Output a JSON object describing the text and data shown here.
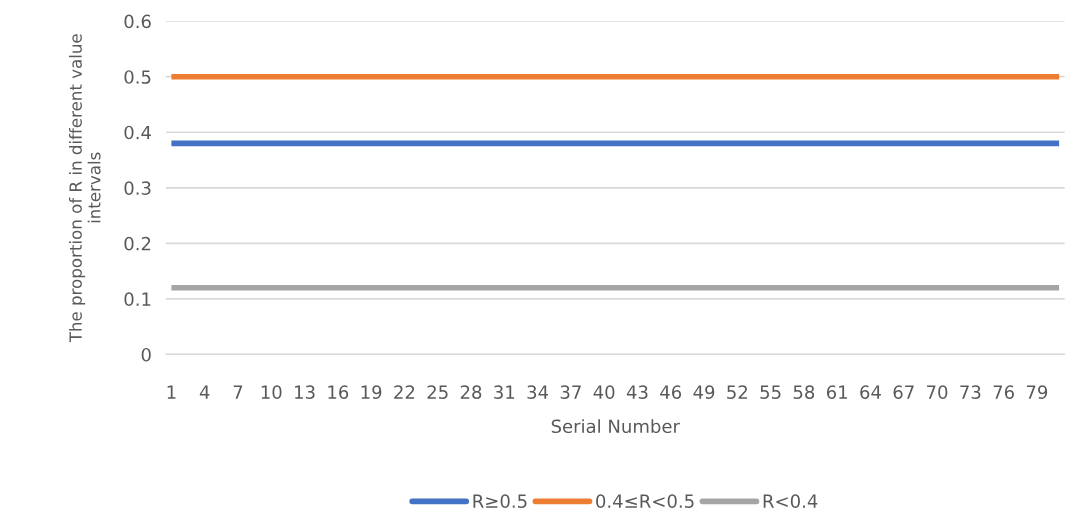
{
  "chart_data": {
    "type": "line",
    "xlabel": "Serial Number",
    "ylabel": "The proportion of R in different value intervals",
    "categories": [
      "1",
      null,
      null,
      "4",
      null,
      null,
      "7",
      null,
      null,
      "10",
      null,
      null,
      "13",
      null,
      null,
      "16",
      null,
      null,
      "19",
      null,
      null,
      "22",
      null,
      null,
      "25",
      null,
      null,
      "28",
      null,
      null,
      "31",
      null,
      null,
      "34",
      null,
      null,
      "37",
      null,
      null,
      "40",
      null,
      null,
      "43",
      null,
      null,
      "46",
      null,
      null,
      "49",
      null,
      null,
      "52",
      null,
      null,
      "55",
      null,
      null,
      "58",
      null,
      null,
      "61",
      null,
      null,
      "64",
      null,
      null,
      "67",
      null,
      null,
      "70",
      null,
      null,
      "73",
      null,
      null,
      "76",
      null,
      null,
      "79",
      null,
      null
    ],
    "series": [
      {
        "name": "R≥0.5",
        "color": "#4472c4",
        "values": [
          0.38,
          0.38,
          0.38,
          0.38,
          0.38,
          0.38,
          0.38,
          0.38,
          0.38,
          0.38,
          0.38,
          0.38,
          0.38,
          0.38,
          0.38,
          0.38,
          0.38,
          0.38,
          0.38,
          0.38,
          0.38,
          0.38,
          0.38,
          0.38,
          0.38,
          0.38,
          0.38,
          0.38,
          0.38,
          0.38,
          0.38,
          0.38,
          0.38,
          0.38,
          0.38,
          0.38,
          0.38,
          0.38,
          0.38,
          0.38,
          0.38,
          0.38,
          0.38,
          0.38,
          0.38,
          0.38,
          0.38,
          0.38,
          0.38,
          0.38,
          0.38,
          0.38,
          0.38,
          0.38,
          0.38,
          0.38,
          0.38,
          0.38,
          0.38,
          0.38,
          0.38,
          0.38,
          0.38,
          0.38,
          0.38,
          0.38,
          0.38,
          0.38,
          0.38,
          0.38,
          0.38,
          0.38,
          0.38,
          0.38,
          0.38,
          0.38,
          0.38,
          0.38,
          0.38,
          0.38,
          0.38
        ]
      },
      {
        "name": "0.4≤R<0.5",
        "color": "#ed7d31",
        "values": [
          0.5,
          0.5,
          0.5,
          0.5,
          0.5,
          0.5,
          0.5,
          0.5,
          0.5,
          0.5,
          0.5,
          0.5,
          0.5,
          0.5,
          0.5,
          0.5,
          0.5,
          0.5,
          0.5,
          0.5,
          0.5,
          0.5,
          0.5,
          0.5,
          0.5,
          0.5,
          0.5,
          0.5,
          0.5,
          0.5,
          0.5,
          0.5,
          0.5,
          0.5,
          0.5,
          0.5,
          0.5,
          0.5,
          0.5,
          0.5,
          0.5,
          0.5,
          0.5,
          0.5,
          0.5,
          0.5,
          0.5,
          0.5,
          0.5,
          0.5,
          0.5,
          0.5,
          0.5,
          0.5,
          0.5,
          0.5,
          0.5,
          0.5,
          0.5,
          0.5,
          0.5,
          0.5,
          0.5,
          0.5,
          0.5,
          0.5,
          0.5,
          0.5,
          0.5,
          0.5,
          0.5,
          0.5,
          0.5,
          0.5,
          0.5,
          0.5,
          0.5,
          0.5,
          0.5,
          0.5,
          0.5
        ]
      },
      {
        "name": "R<0.4",
        "color": "#a5a5a5",
        "values": [
          0.12,
          0.12,
          0.12,
          0.12,
          0.12,
          0.12,
          0.12,
          0.12,
          0.12,
          0.12,
          0.12,
          0.12,
          0.12,
          0.12,
          0.12,
          0.12,
          0.12,
          0.12,
          0.12,
          0.12,
          0.12,
          0.12,
          0.12,
          0.12,
          0.12,
          0.12,
          0.12,
          0.12,
          0.12,
          0.12,
          0.12,
          0.12,
          0.12,
          0.12,
          0.12,
          0.12,
          0.12,
          0.12,
          0.12,
          0.12,
          0.12,
          0.12,
          0.12,
          0.12,
          0.12,
          0.12,
          0.12,
          0.12,
          0.12,
          0.12,
          0.12,
          0.12,
          0.12,
          0.12,
          0.12,
          0.12,
          0.12,
          0.12,
          0.12,
          0.12,
          0.12,
          0.12,
          0.12,
          0.12,
          0.12,
          0.12,
          0.12,
          0.12,
          0.12,
          0.12,
          0.12,
          0.12,
          0.12,
          0.12,
          0.12,
          0.12,
          0.12,
          0.12,
          0.12,
          0.12,
          0.12
        ]
      }
    ],
    "ylim": [
      0,
      0.6
    ],
    "yticks": [
      0,
      0.1,
      0.2,
      0.3,
      0.4,
      0.5,
      0.6
    ],
    "grid": "y",
    "legend": "bottom",
    "marker": "none",
    "line_style": "solid"
  }
}
